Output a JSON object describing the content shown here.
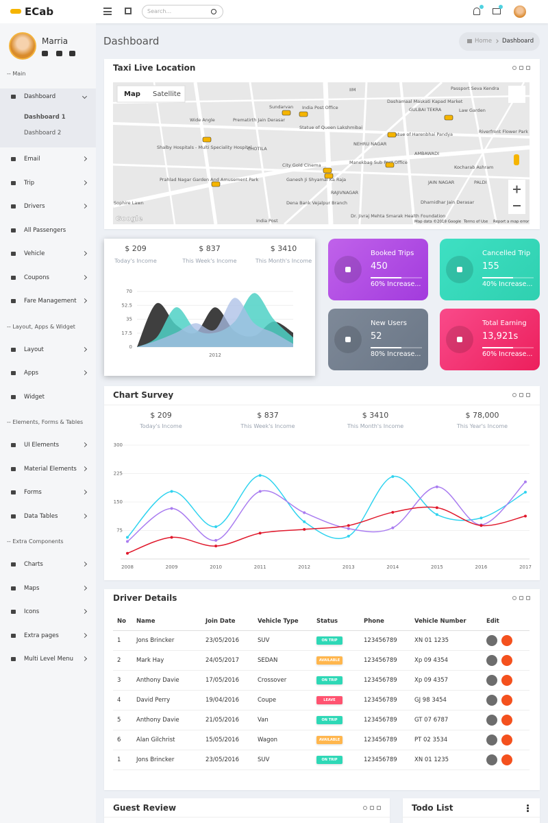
{
  "header": {
    "brand": "ECab",
    "search_placeholder": "Search..."
  },
  "sidebar": {
    "user_name": "Marria",
    "menu": [
      {
        "heading": "-- Main",
        "items": [
          {
            "label": "Dashboard",
            "submenu": true,
            "children": [
              "Dashboard 1",
              "Dashboard 2"
            ]
          },
          {
            "label": "Email",
            "submenu": true
          },
          {
            "label": "Trip",
            "submenu": true
          },
          {
            "label": "Drivers",
            "submenu": true
          },
          {
            "label": "All Passengers",
            "submenu": false
          },
          {
            "label": "Vehicle",
            "submenu": true
          },
          {
            "label": "Coupons",
            "submenu": true
          },
          {
            "label": "Fare Management",
            "submenu": true
          }
        ]
      },
      {
        "heading": "-- Layout, Apps & Widget",
        "items": [
          {
            "label": "Layout",
            "submenu": true
          },
          {
            "label": "Apps",
            "submenu": true
          },
          {
            "label": "Widget",
            "submenu": false
          }
        ]
      },
      {
        "heading": "-- Elements, Forms & Tables",
        "items": [
          {
            "label": "UI Elements",
            "submenu": true
          },
          {
            "label": "Material Elements",
            "submenu": true
          },
          {
            "label": "Forms",
            "submenu": true
          },
          {
            "label": "Data Tables",
            "submenu": true
          }
        ]
      },
      {
        "heading": "-- Extra Components",
        "items": [
          {
            "label": "Charts",
            "submenu": true
          },
          {
            "label": "Maps",
            "submenu": true
          },
          {
            "label": "Icons",
            "submenu": true
          },
          {
            "label": "Extra pages",
            "submenu": true
          },
          {
            "label": "Multi Level Menu",
            "submenu": true
          }
        ]
      }
    ]
  },
  "page_title": "Dashboard",
  "breadcrumb": [
    "Home",
    "Dashboard"
  ],
  "map_card": {
    "title": "Taxi Live Location",
    "tabs": [
      "Map",
      "Satellite"
    ],
    "labels": [
      "IIM",
      "Sundarvan",
      "India Post Office",
      "Dashamaal Maskati Kapad Market",
      "GULBAI TEKRA",
      "Law Garden",
      "Passport Seva Kendra",
      "Wide Angle",
      "Prematirth Jain Derasar",
      "Statue of Queen Lakshmibai",
      "NEHRU NAGAR",
      "Statue of Harenbhai Pandya",
      "Riverfront Flower Park",
      "Shalby Hospitals - Multi Speciality Hospital",
      "CHOTILA",
      "AMBAWADI",
      "City Gold Cinema",
      "Manekbag Sub Post Office",
      "Kocharab Ashram",
      "Prahlad Nagar Garden And Amusement Park",
      "Ganesh Ji Shyamal Ka Raja",
      "RAJIVNAGAR",
      "JAIN NAGAR",
      "PALDI",
      "Sophire Lawn",
      "Dena Bank Vejalpur Branch",
      "Dharnidhar Jain Derasar",
      "Dr. Jivraj Mehta Smarak Health Foundation",
      "India Post"
    ],
    "logo": "Google",
    "attribution": [
      "Map data ©2018 Google",
      "Terms of Use",
      "Report a map error"
    ]
  },
  "income_card": {
    "stats": [
      {
        "value": "$ 209",
        "label": "Today's Income"
      },
      {
        "value": "$ 837",
        "label": "This Week's Income"
      },
      {
        "value": "$ 3410",
        "label": "This Month's Income"
      }
    ]
  },
  "stat_cards": [
    {
      "title": "Booked Trips",
      "value": "450",
      "note": "60% Increase..."
    },
    {
      "title": "Cancelled Trip",
      "value": "155",
      "note": "40% Increase..."
    },
    {
      "title": "New Users",
      "value": "52",
      "note": "80% Increase..."
    },
    {
      "title": "Total Earning",
      "value": "13,921s",
      "note": "60% Increase..."
    }
  ],
  "survey_card": {
    "title": "Chart Survey",
    "stats": [
      {
        "value": "$ 209",
        "label": "Today's Income"
      },
      {
        "value": "$ 837",
        "label": "This Week's Income"
      },
      {
        "value": "$ 3410",
        "label": "This Month's Income"
      },
      {
        "value": "$ 78,000",
        "label": "This Year's Income"
      }
    ]
  },
  "chart_data": [
    {
      "type": "area",
      "categories": [
        null,
        null,
        null,
        null,
        "2012",
        null,
        null,
        null,
        null
      ],
      "ylim": [
        0,
        70
      ],
      "yticks": [
        0,
        17.5,
        35,
        52.5,
        70
      ],
      "grid": true,
      "series": [
        {
          "color": "#3f3f3f",
          "values": [
            0,
            55,
            28,
            18,
            50,
            20,
            14,
            32,
            18
          ]
        },
        {
          "color": "#4fd1c5",
          "values": [
            0,
            12,
            50,
            22,
            18,
            32,
            68,
            35,
            12
          ]
        },
        {
          "color": "#a9bde6",
          "values": [
            0,
            8,
            18,
            30,
            22,
            62,
            30,
            18,
            4
          ]
        }
      ]
    },
    {
      "type": "line",
      "x": [
        2008,
        2009,
        2010,
        2011,
        2012,
        2013,
        2014,
        2015,
        2016,
        2017
      ],
      "xlim": [
        2008,
        2017
      ],
      "xticks": [
        2008,
        2009,
        2010,
        2011,
        2012,
        2013,
        2014,
        2015,
        2016,
        2017
      ],
      "ylim": [
        0,
        300
      ],
      "yticks": [
        75,
        150,
        225,
        300
      ],
      "grid": true,
      "series": [
        {
          "color": "#2fd3ef",
          "values": [
            57,
            178,
            85,
            220,
            98,
            60,
            217,
            117,
            108,
            176
          ]
        },
        {
          "color": "#a97cf0",
          "values": [
            46,
            133,
            49,
            178,
            122,
            80,
            82,
            190,
            90,
            203
          ]
        },
        {
          "color": "#e0182b",
          "values": [
            15,
            57,
            34,
            68,
            78,
            88,
            123,
            135,
            88,
            113
          ]
        }
      ]
    }
  ],
  "driver_table": {
    "title": "Driver Details",
    "columns": [
      "No",
      "Name",
      "Join Date",
      "Vehicle Type",
      "Status",
      "Phone",
      "Vehicle Number",
      "Edit"
    ],
    "rows": [
      [
        "1",
        "Jons Brincker",
        "23/05/2016",
        "SUV",
        "ON TRIP",
        "123456789",
        "XN 01 1235"
      ],
      [
        "2",
        "Mark Hay",
        "24/05/2017",
        "SEDAN",
        "AVAILABLE",
        "123456789",
        "Xp 09 4354"
      ],
      [
        "3",
        "Anthony Davie",
        "17/05/2016",
        "Crossover",
        "ON TRIP",
        "123456789",
        "Xp 09 4357"
      ],
      [
        "4",
        "David Perry",
        "19/04/2016",
        "Coupe",
        "LEAVE",
        "123456789",
        "GJ 98 3454"
      ],
      [
        "5",
        "Anthony Davie",
        "21/05/2016",
        "Van",
        "ON TRIP",
        "123456789",
        "GT 07 6787"
      ],
      [
        "6",
        "Alan Gilchrist",
        "15/05/2016",
        "Wagon",
        "AVAILABLE",
        "123456789",
        "PT 02 3534"
      ],
      [
        "1",
        "Jons Brincker",
        "23/05/2016",
        "SUV",
        "ON TRIP",
        "123456789",
        "XN 01 1235"
      ]
    ]
  },
  "guest_review": {
    "title": "Guest Review"
  },
  "todo_list": {
    "title": "Todo List"
  }
}
